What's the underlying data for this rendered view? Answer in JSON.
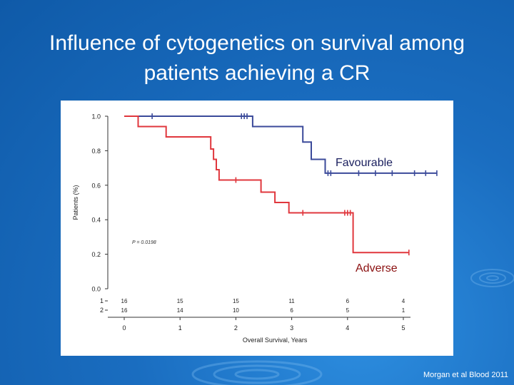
{
  "slide": {
    "title_line1": "Influence of cytogenetics on survival among",
    "title_line2": "patients achieving a CR",
    "citation": "Morgan et al Blood 2011"
  },
  "colors": {
    "background": "#1a6dc0",
    "favourable": "#3b4a9a",
    "adverse": "#e0373d"
  },
  "chart_data": {
    "type": "line",
    "title": "",
    "xlabel": "Overall Survival, Years",
    "ylabel": "Patients (%)",
    "xlim": [
      0,
      5.5
    ],
    "ylim": [
      0,
      1.0
    ],
    "x_ticks": [
      "0",
      "1",
      "2",
      "3",
      "4",
      "5"
    ],
    "y_ticks": [
      "0.0",
      "0.2",
      "0.4",
      "0.6",
      "0.8",
      "1.0"
    ],
    "grid": false,
    "annotation": "P = 0.0198",
    "series": [
      {
        "name": "Favourable",
        "color": "#3b4a9a",
        "steps": [
          [
            0,
            1.0
          ],
          [
            2.3,
            1.0
          ],
          [
            2.3,
            0.94
          ],
          [
            3.2,
            0.94
          ],
          [
            3.2,
            0.85
          ],
          [
            3.35,
            0.85
          ],
          [
            3.35,
            0.75
          ],
          [
            3.6,
            0.75
          ],
          [
            3.6,
            0.67
          ],
          [
            5.6,
            0.67
          ]
        ],
        "censors": [
          [
            0.5,
            1.0
          ],
          [
            2.1,
            1.0
          ],
          [
            2.15,
            1.0
          ],
          [
            2.2,
            1.0
          ],
          [
            3.65,
            0.67
          ],
          [
            3.7,
            0.67
          ],
          [
            4.2,
            0.67
          ],
          [
            4.5,
            0.67
          ],
          [
            4.8,
            0.67
          ],
          [
            5.2,
            0.67
          ],
          [
            5.4,
            0.67
          ],
          [
            5.6,
            0.67
          ]
        ]
      },
      {
        "name": "Adverse",
        "color": "#e0373d",
        "steps": [
          [
            0,
            1.0
          ],
          [
            0.25,
            1.0
          ],
          [
            0.25,
            0.94
          ],
          [
            0.75,
            0.94
          ],
          [
            0.75,
            0.88
          ],
          [
            1.55,
            0.88
          ],
          [
            1.55,
            0.81
          ],
          [
            1.6,
            0.81
          ],
          [
            1.6,
            0.75
          ],
          [
            1.65,
            0.75
          ],
          [
            1.65,
            0.69
          ],
          [
            1.7,
            0.69
          ],
          [
            1.7,
            0.63
          ],
          [
            2.45,
            0.63
          ],
          [
            2.45,
            0.56
          ],
          [
            2.7,
            0.56
          ],
          [
            2.7,
            0.5
          ],
          [
            2.95,
            0.5
          ],
          [
            2.95,
            0.44
          ],
          [
            4.1,
            0.44
          ],
          [
            4.1,
            0.21
          ],
          [
            5.1,
            0.21
          ]
        ],
        "censors": [
          [
            2.0,
            0.63
          ],
          [
            3.2,
            0.44
          ],
          [
            3.95,
            0.44
          ],
          [
            4.0,
            0.44
          ],
          [
            4.05,
            0.44
          ],
          [
            5.1,
            0.21
          ]
        ]
      }
    ],
    "risk_table": {
      "rows": [
        {
          "label": "1",
          "values": [
            "16",
            "15",
            "15",
            "11",
            "6",
            "4"
          ]
        },
        {
          "label": "2",
          "values": [
            "16",
            "14",
            "10",
            "6",
            "5",
            "1"
          ]
        }
      ]
    }
  }
}
